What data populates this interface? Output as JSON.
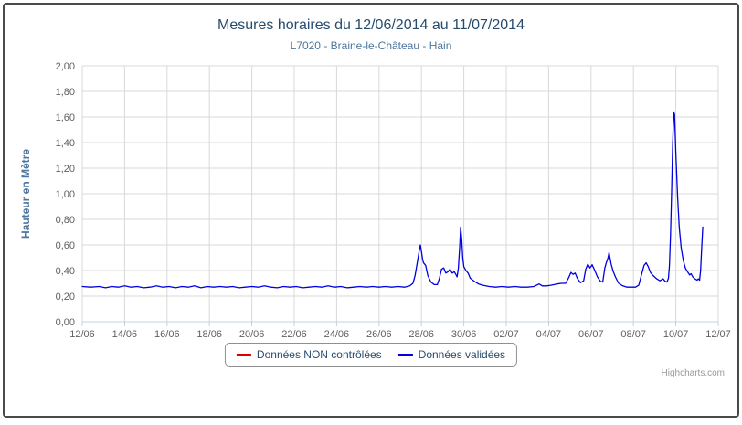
{
  "chart": {
    "title": "Mesures horaires du 12/06/2014 au 11/07/2014",
    "subtitle": "L7020 - Braine-le-Château - Hain",
    "credits": "Highcharts.com"
  },
  "legend": {
    "items": [
      {
        "label": "Données NON contrôlées",
        "color": "#DD0000"
      },
      {
        "label": "Données validées",
        "color": "#0000E0"
      }
    ]
  },
  "colors": {
    "grid": "#d8d8d8",
    "axis_line": "#c0d0e0",
    "tick": "#c0d0e0",
    "tick_label": "#606060",
    "title": "#274b6d",
    "subtitle": "#4d759e",
    "axis_title": "#4d759e"
  },
  "chart_data": {
    "type": "line",
    "title": "Mesures horaires du 12/06/2014 au 11/07/2014",
    "subtitle": "L7020 - Braine-le-Château - Hain",
    "xlabel": "",
    "ylabel": "Hauteur en Mètre",
    "ylim": [
      0,
      2.0
    ],
    "ytick_step": 0.2,
    "ytick_labels": [
      "0,00",
      "0,20",
      "0,40",
      "0,60",
      "0,80",
      "1,00",
      "1,20",
      "1,40",
      "1,60",
      "1,80",
      "2,00"
    ],
    "xtick_labels": [
      "12/06",
      "14/06",
      "16/06",
      "18/06",
      "20/06",
      "22/06",
      "24/06",
      "26/06",
      "28/06",
      "30/06",
      "02/07",
      "04/07",
      "06/07",
      "08/07",
      "10/07",
      "12/07"
    ],
    "xtick_days": [
      0,
      2,
      4,
      6,
      8,
      10,
      12,
      14,
      16,
      18,
      20,
      22,
      24,
      26,
      28,
      30
    ],
    "x_range_days": [
      0,
      30
    ],
    "grid": true,
    "legend_position": "bottom",
    "series": [
      {
        "name": "Données NON contrôlées",
        "color": "#DD0000",
        "points": []
      },
      {
        "name": "Données validées",
        "color": "#0000E0",
        "points": [
          [
            0,
            0.275
          ],
          [
            0.4,
            0.27
          ],
          [
            0.8,
            0.275
          ],
          [
            1.1,
            0.265
          ],
          [
            1.4,
            0.275
          ],
          [
            1.7,
            0.27
          ],
          [
            2.0,
            0.28
          ],
          [
            2.3,
            0.27
          ],
          [
            2.6,
            0.275
          ],
          [
            2.9,
            0.265
          ],
          [
            3.2,
            0.27
          ],
          [
            3.5,
            0.28
          ],
          [
            3.8,
            0.27
          ],
          [
            4.1,
            0.275
          ],
          [
            4.4,
            0.265
          ],
          [
            4.7,
            0.275
          ],
          [
            5.0,
            0.27
          ],
          [
            5.3,
            0.28
          ],
          [
            5.6,
            0.265
          ],
          [
            5.9,
            0.275
          ],
          [
            6.2,
            0.27
          ],
          [
            6.5,
            0.275
          ],
          [
            6.8,
            0.27
          ],
          [
            7.1,
            0.275
          ],
          [
            7.4,
            0.265
          ],
          [
            7.7,
            0.27
          ],
          [
            8.0,
            0.275
          ],
          [
            8.3,
            0.27
          ],
          [
            8.6,
            0.28
          ],
          [
            8.9,
            0.27
          ],
          [
            9.2,
            0.265
          ],
          [
            9.5,
            0.275
          ],
          [
            9.8,
            0.27
          ],
          [
            10.1,
            0.275
          ],
          [
            10.4,
            0.265
          ],
          [
            10.7,
            0.27
          ],
          [
            11.0,
            0.275
          ],
          [
            11.3,
            0.27
          ],
          [
            11.6,
            0.28
          ],
          [
            11.9,
            0.27
          ],
          [
            12.2,
            0.275
          ],
          [
            12.5,
            0.265
          ],
          [
            12.8,
            0.27
          ],
          [
            13.1,
            0.275
          ],
          [
            13.4,
            0.27
          ],
          [
            13.7,
            0.275
          ],
          [
            14.0,
            0.27
          ],
          [
            14.3,
            0.275
          ],
          [
            14.6,
            0.27
          ],
          [
            14.9,
            0.275
          ],
          [
            15.2,
            0.27
          ],
          [
            15.45,
            0.28
          ],
          [
            15.6,
            0.3
          ],
          [
            15.7,
            0.36
          ],
          [
            15.8,
            0.46
          ],
          [
            15.9,
            0.56
          ],
          [
            15.95,
            0.6
          ],
          [
            16.0,
            0.55
          ],
          [
            16.05,
            0.49
          ],
          [
            16.1,
            0.46
          ],
          [
            16.2,
            0.44
          ],
          [
            16.3,
            0.36
          ],
          [
            16.45,
            0.31
          ],
          [
            16.6,
            0.29
          ],
          [
            16.75,
            0.29
          ],
          [
            16.85,
            0.34
          ],
          [
            16.95,
            0.41
          ],
          [
            17.05,
            0.42
          ],
          [
            17.15,
            0.38
          ],
          [
            17.25,
            0.39
          ],
          [
            17.35,
            0.41
          ],
          [
            17.45,
            0.38
          ],
          [
            17.55,
            0.39
          ],
          [
            17.62,
            0.37
          ],
          [
            17.68,
            0.35
          ],
          [
            17.74,
            0.42
          ],
          [
            17.8,
            0.58
          ],
          [
            17.85,
            0.74
          ],
          [
            17.9,
            0.64
          ],
          [
            17.95,
            0.5
          ],
          [
            18.0,
            0.43
          ],
          [
            18.1,
            0.4
          ],
          [
            18.2,
            0.38
          ],
          [
            18.3,
            0.34
          ],
          [
            18.5,
            0.315
          ],
          [
            18.7,
            0.295
          ],
          [
            18.9,
            0.285
          ],
          [
            19.2,
            0.275
          ],
          [
            19.5,
            0.27
          ],
          [
            19.8,
            0.275
          ],
          [
            20.1,
            0.27
          ],
          [
            20.4,
            0.275
          ],
          [
            20.7,
            0.27
          ],
          [
            21.0,
            0.27
          ],
          [
            21.3,
            0.275
          ],
          [
            21.55,
            0.295
          ],
          [
            21.7,
            0.28
          ],
          [
            21.9,
            0.28
          ],
          [
            22.1,
            0.285
          ],
          [
            22.4,
            0.295
          ],
          [
            22.6,
            0.3
          ],
          [
            22.8,
            0.3
          ],
          [
            22.95,
            0.345
          ],
          [
            23.05,
            0.385
          ],
          [
            23.15,
            0.37
          ],
          [
            23.25,
            0.38
          ],
          [
            23.35,
            0.34
          ],
          [
            23.5,
            0.305
          ],
          [
            23.65,
            0.32
          ],
          [
            23.75,
            0.41
          ],
          [
            23.85,
            0.45
          ],
          [
            23.95,
            0.42
          ],
          [
            24.05,
            0.445
          ],
          [
            24.15,
            0.41
          ],
          [
            24.3,
            0.35
          ],
          [
            24.45,
            0.315
          ],
          [
            24.55,
            0.31
          ],
          [
            24.65,
            0.42
          ],
          [
            24.72,
            0.46
          ],
          [
            24.8,
            0.5
          ],
          [
            24.85,
            0.54
          ],
          [
            24.95,
            0.45
          ],
          [
            25.05,
            0.39
          ],
          [
            25.15,
            0.35
          ],
          [
            25.3,
            0.3
          ],
          [
            25.5,
            0.28
          ],
          [
            25.7,
            0.27
          ],
          [
            25.9,
            0.27
          ],
          [
            26.1,
            0.27
          ],
          [
            26.25,
            0.285
          ],
          [
            26.4,
            0.38
          ],
          [
            26.5,
            0.44
          ],
          [
            26.6,
            0.46
          ],
          [
            26.7,
            0.43
          ],
          [
            26.8,
            0.385
          ],
          [
            26.9,
            0.365
          ],
          [
            27.0,
            0.35
          ],
          [
            27.1,
            0.335
          ],
          [
            27.25,
            0.32
          ],
          [
            27.4,
            0.335
          ],
          [
            27.5,
            0.315
          ],
          [
            27.58,
            0.31
          ],
          [
            27.65,
            0.34
          ],
          [
            27.7,
            0.44
          ],
          [
            27.75,
            0.68
          ],
          [
            27.8,
            1.02
          ],
          [
            27.85,
            1.38
          ],
          [
            27.9,
            1.64
          ],
          [
            27.94,
            1.62
          ],
          [
            28.0,
            1.32
          ],
          [
            28.08,
            0.98
          ],
          [
            28.16,
            0.74
          ],
          [
            28.25,
            0.58
          ],
          [
            28.35,
            0.48
          ],
          [
            28.45,
            0.42
          ],
          [
            28.55,
            0.39
          ],
          [
            28.65,
            0.365
          ],
          [
            28.72,
            0.375
          ],
          [
            28.8,
            0.35
          ],
          [
            28.9,
            0.335
          ],
          [
            29.0,
            0.325
          ],
          [
            29.06,
            0.335
          ],
          [
            29.12,
            0.325
          ],
          [
            29.17,
            0.4
          ],
          [
            29.22,
            0.58
          ],
          [
            29.27,
            0.74
          ]
        ]
      }
    ]
  }
}
